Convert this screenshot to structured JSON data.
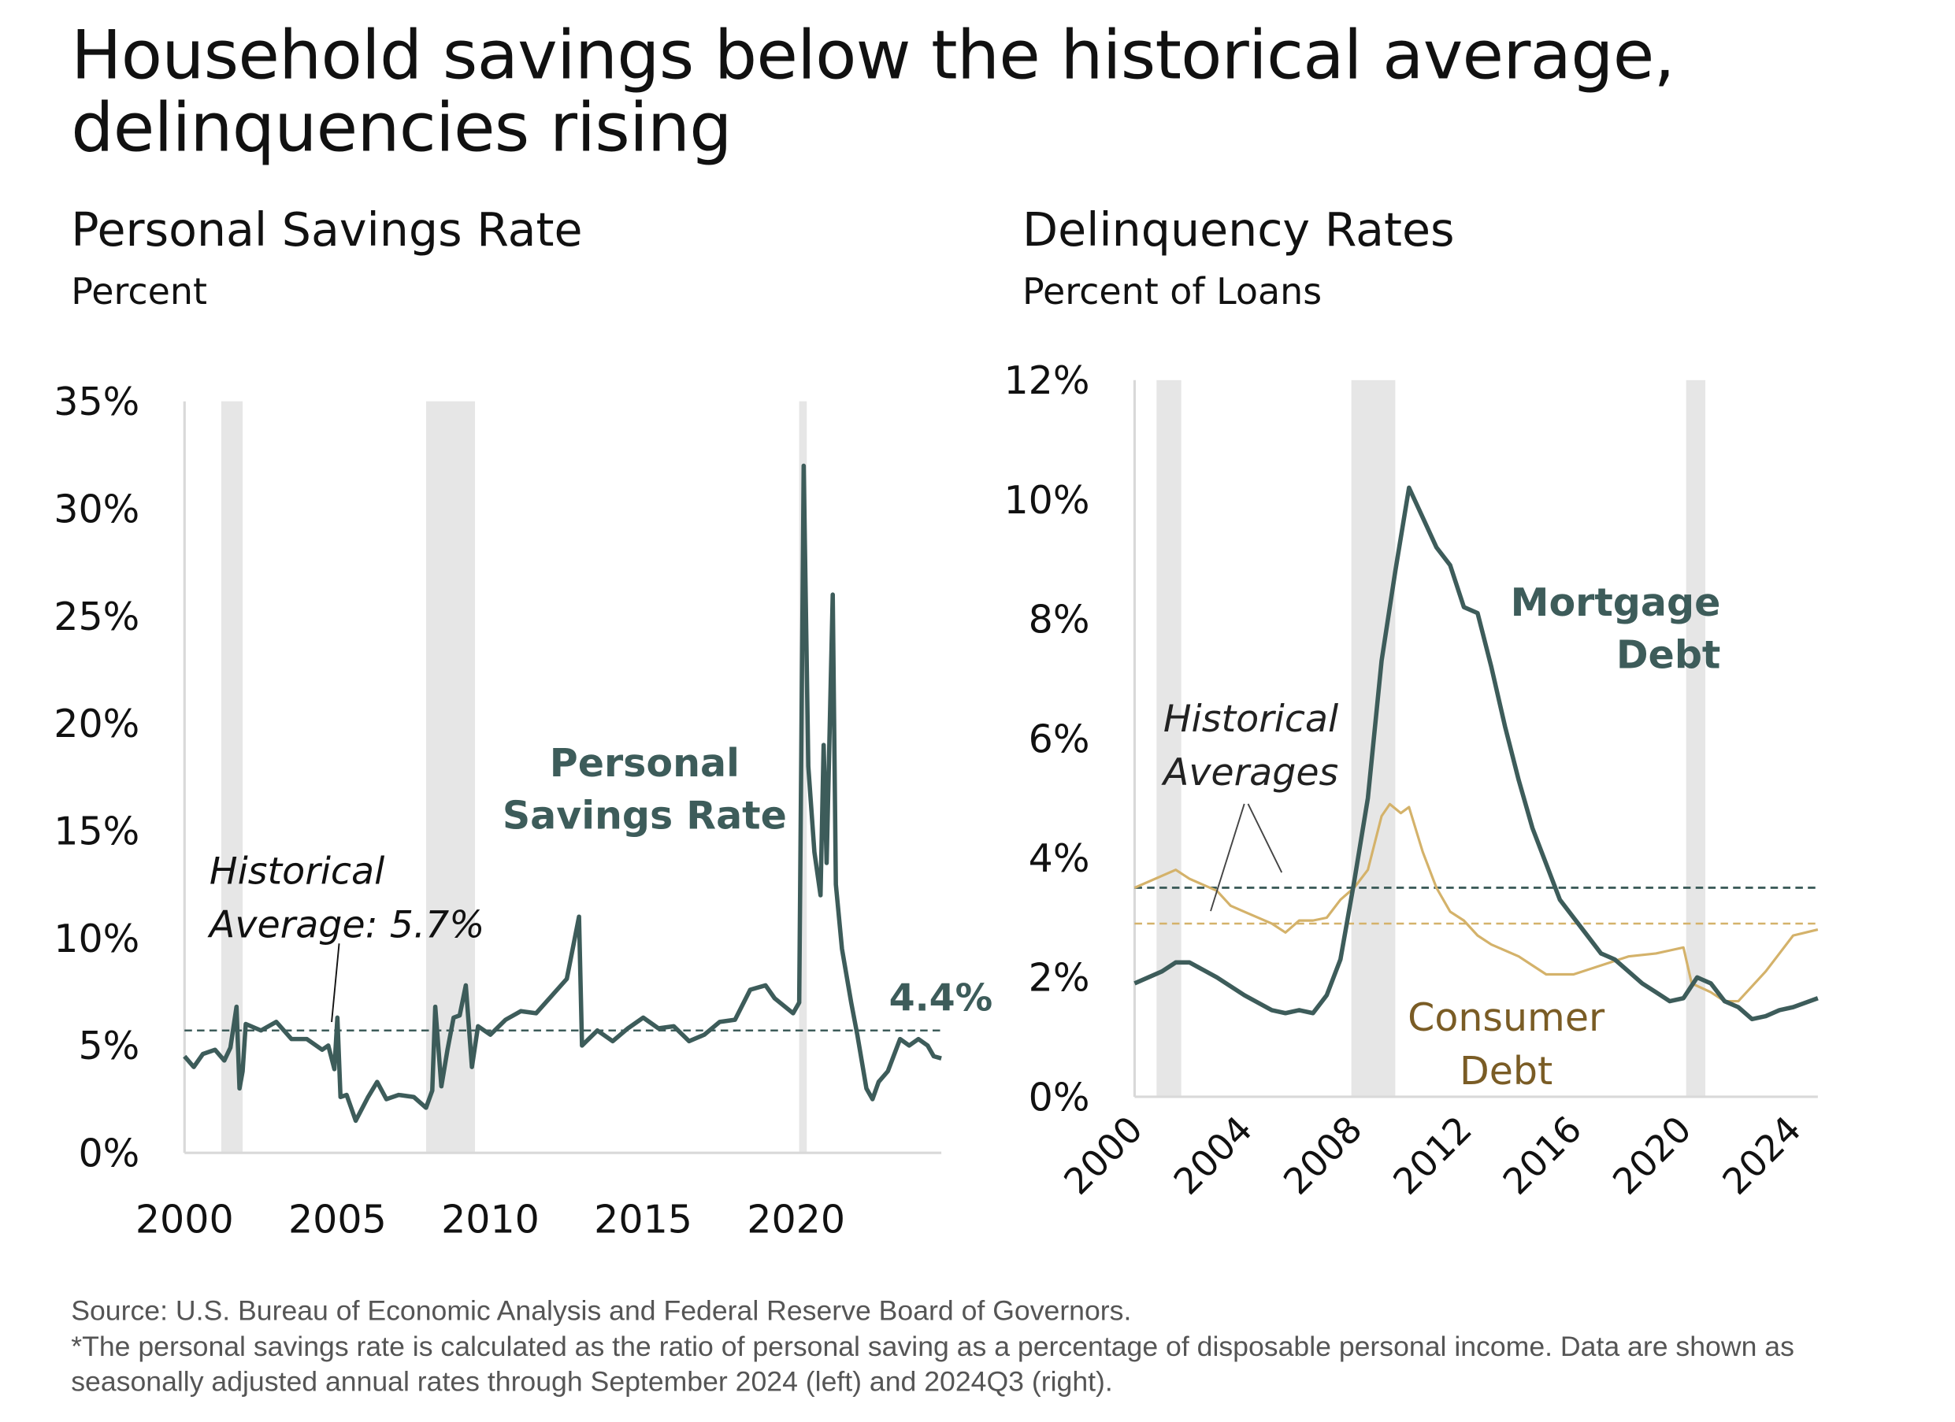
{
  "title": [
    "Household savings below the historical average,",
    "delinquencies rising"
  ],
  "colors": {
    "teal": "#3d5c5a",
    "gold": "#d4b26a",
    "consumer_label": "#7a5c25",
    "recession": "#e6e6e6"
  },
  "source": [
    "Source: U.S. Bureau of Economic Analysis and Federal Reserve Board of Governors.",
    "*The personal savings rate is calculated as the ratio of personal saving as a percentage of disposable personal income. Data are shown as seasonally adjusted annual rates through September 2024 (left) and 2024Q3 (right)."
  ],
  "chart_data": [
    {
      "type": "line",
      "title": "Personal Savings Rate",
      "ylabel": "Percent",
      "xlim": [
        2000,
        2024.75
      ],
      "ylim": [
        0,
        35
      ],
      "x_ticks": [
        2000,
        2005,
        2010,
        2015,
        2020
      ],
      "x_tick_labels": [
        "2000",
        "2005",
        "2010",
        "2015",
        "2020"
      ],
      "y_ticks": [
        0,
        5,
        10,
        15,
        20,
        25,
        30,
        35
      ],
      "y_tick_labels": [
        "0%",
        "5%",
        "10%",
        "15%",
        "20%",
        "25%",
        "30%",
        "35%"
      ],
      "recessions": [
        [
          2001.2,
          2001.9
        ],
        [
          2007.9,
          2009.5
        ],
        [
          2020.1,
          2020.35
        ]
      ],
      "historical_average": 5.7,
      "annotations": {
        "series_label": [
          "Personal",
          "Savings Rate"
        ],
        "avg_label": [
          "Historical",
          "Average: 5.7%"
        ],
        "last_value_label": "4.4%"
      },
      "series": [
        {
          "name": "Personal Savings Rate",
          "points": [
            [
              2000,
              4.5
            ],
            [
              2000.3,
              4.0
            ],
            [
              2000.6,
              4.6
            ],
            [
              2001,
              4.8
            ],
            [
              2001.3,
              4.3
            ],
            [
              2001.5,
              4.9
            ],
            [
              2001.7,
              6.8
            ],
            [
              2001.8,
              3.0
            ],
            [
              2001.9,
              3.8
            ],
            [
              2002,
              6.0
            ],
            [
              2002.5,
              5.7
            ],
            [
              2003,
              6.1
            ],
            [
              2003.5,
              5.3
            ],
            [
              2004,
              5.3
            ],
            [
              2004.5,
              4.8
            ],
            [
              2004.7,
              5.0
            ],
            [
              2004.9,
              3.9
            ],
            [
              2005.0,
              6.3
            ],
            [
              2005.1,
              2.6
            ],
            [
              2005.3,
              2.7
            ],
            [
              2005.6,
              1.5
            ],
            [
              2006,
              2.6
            ],
            [
              2006.3,
              3.3
            ],
            [
              2006.6,
              2.5
            ],
            [
              2007,
              2.7
            ],
            [
              2007.5,
              2.6
            ],
            [
              2007.9,
              2.1
            ],
            [
              2008.1,
              2.9
            ],
            [
              2008.2,
              6.8
            ],
            [
              2008.4,
              3.1
            ],
            [
              2008.6,
              4.8
            ],
            [
              2008.8,
              6.3
            ],
            [
              2009,
              6.4
            ],
            [
              2009.2,
              7.8
            ],
            [
              2009.4,
              4.0
            ],
            [
              2009.6,
              5.9
            ],
            [
              2010,
              5.5
            ],
            [
              2010.5,
              6.2
            ],
            [
              2011,
              6.6
            ],
            [
              2011.5,
              6.5
            ],
            [
              2012,
              7.3
            ],
            [
              2012.5,
              8.1
            ],
            [
              2012.9,
              11.0
            ],
            [
              2013.0,
              5.0
            ],
            [
              2013.5,
              5.7
            ],
            [
              2014,
              5.2
            ],
            [
              2014.5,
              5.8
            ],
            [
              2015,
              6.3
            ],
            [
              2015.5,
              5.8
            ],
            [
              2016,
              5.9
            ],
            [
              2016.5,
              5.2
            ],
            [
              2017,
              5.5
            ],
            [
              2017.5,
              6.1
            ],
            [
              2018,
              6.2
            ],
            [
              2018.5,
              7.6
            ],
            [
              2019,
              7.8
            ],
            [
              2019.3,
              7.2
            ],
            [
              2019.9,
              6.5
            ],
            [
              2020.1,
              7.0
            ],
            [
              2020.25,
              32.0
            ],
            [
              2020.4,
              18.0
            ],
            [
              2020.6,
              14.0
            ],
            [
              2020.8,
              12.0
            ],
            [
              2020.9,
              19.0
            ],
            [
              2021.0,
              13.5
            ],
            [
              2021.2,
              26.0
            ],
            [
              2021.3,
              12.5
            ],
            [
              2021.5,
              9.5
            ],
            [
              2021.8,
              7.0
            ],
            [
              2022.0,
              5.5
            ],
            [
              2022.3,
              3.0
            ],
            [
              2022.5,
              2.5
            ],
            [
              2022.7,
              3.3
            ],
            [
              2023,
              3.8
            ],
            [
              2023.4,
              5.3
            ],
            [
              2023.7,
              5.0
            ],
            [
              2024,
              5.3
            ],
            [
              2024.3,
              5.0
            ],
            [
              2024.5,
              4.5
            ],
            [
              2024.75,
              4.4
            ]
          ]
        }
      ]
    },
    {
      "type": "line",
      "title": "Delinquency Rates",
      "ylabel": "Percent of Loans",
      "xlim": [
        2000,
        2024.9
      ],
      "ylim": [
        0,
        12
      ],
      "x_ticks": [
        2000,
        2004,
        2008,
        2012,
        2016,
        2020,
        2024
      ],
      "x_tick_labels": [
        "2000",
        "2004",
        "2008",
        "2012",
        "2016",
        "2020",
        "2024"
      ],
      "y_ticks": [
        0,
        2,
        4,
        6,
        8,
        10,
        12
      ],
      "y_tick_labels": [
        "0%",
        "2%",
        "4%",
        "6%",
        "8%",
        "10%",
        "12%"
      ],
      "recessions": [
        [
          2000.8,
          2001.7
        ],
        [
          2007.9,
          2009.5
        ],
        [
          2020.1,
          2020.8
        ]
      ],
      "historical_averages": {
        "Mortgage Debt": 3.5,
        "Consumer Debt": 2.9
      },
      "annotations": {
        "avg_label": [
          "Historical",
          "Averages"
        ],
        "mortgage_label": [
          "Mortgage",
          "Debt"
        ],
        "consumer_label": [
          "Consumer",
          "Debt"
        ]
      },
      "series": [
        {
          "name": "Mortgage Debt",
          "points": [
            [
              2000,
              1.9
            ],
            [
              2001,
              2.1
            ],
            [
              2001.5,
              2.25
            ],
            [
              2002,
              2.25
            ],
            [
              2003,
              2.0
            ],
            [
              2004,
              1.7
            ],
            [
              2005,
              1.45
            ],
            [
              2005.5,
              1.4
            ],
            [
              2006,
              1.45
            ],
            [
              2006.5,
              1.4
            ],
            [
              2007,
              1.7
            ],
            [
              2007.5,
              2.3
            ],
            [
              2008,
              3.6
            ],
            [
              2008.5,
              5.0
            ],
            [
              2009,
              7.3
            ],
            [
              2009.5,
              8.8
            ],
            [
              2010,
              10.2
            ],
            [
              2010.5,
              9.7
            ],
            [
              2011,
              9.2
            ],
            [
              2011.5,
              8.9
            ],
            [
              2012,
              8.2
            ],
            [
              2012.5,
              8.1
            ],
            [
              2013,
              7.2
            ],
            [
              2013.5,
              6.2
            ],
            [
              2014,
              5.3
            ],
            [
              2014.5,
              4.5
            ],
            [
              2015,
              3.9
            ],
            [
              2015.5,
              3.3
            ],
            [
              2016,
              3.0
            ],
            [
              2016.5,
              2.7
            ],
            [
              2017,
              2.4
            ],
            [
              2017.5,
              2.3
            ],
            [
              2018,
              2.1
            ],
            [
              2018.5,
              1.9
            ],
            [
              2019,
              1.75
            ],
            [
              2019.5,
              1.6
            ],
            [
              2020,
              1.65
            ],
            [
              2020.5,
              2.0
            ],
            [
              2021,
              1.9
            ],
            [
              2021.5,
              1.6
            ],
            [
              2022,
              1.5
            ],
            [
              2022.5,
              1.3
            ],
            [
              2023,
              1.35
            ],
            [
              2023.5,
              1.45
            ],
            [
              2024,
              1.5
            ],
            [
              2024.9,
              1.65
            ]
          ]
        },
        {
          "name": "Consumer Debt",
          "points": [
            [
              2000,
              3.5
            ],
            [
              2001,
              3.7
            ],
            [
              2001.5,
              3.8
            ],
            [
              2002,
              3.65
            ],
            [
              2003,
              3.45
            ],
            [
              2003.5,
              3.2
            ],
            [
              2004,
              3.1
            ],
            [
              2005,
              2.9
            ],
            [
              2005.5,
              2.75
            ],
            [
              2006,
              2.95
            ],
            [
              2006.5,
              2.95
            ],
            [
              2007,
              3.0
            ],
            [
              2007.5,
              3.3
            ],
            [
              2008,
              3.5
            ],
            [
              2008.5,
              3.8
            ],
            [
              2009,
              4.7
            ],
            [
              2009.3,
              4.9
            ],
            [
              2009.7,
              4.75
            ],
            [
              2010,
              4.85
            ],
            [
              2010.5,
              4.1
            ],
            [
              2011,
              3.5
            ],
            [
              2011.5,
              3.1
            ],
            [
              2012,
              2.95
            ],
            [
              2012.5,
              2.7
            ],
            [
              2013,
              2.55
            ],
            [
              2014,
              2.35
            ],
            [
              2014.5,
              2.2
            ],
            [
              2015,
              2.05
            ],
            [
              2016,
              2.05
            ],
            [
              2017,
              2.2
            ],
            [
              2018,
              2.35
            ],
            [
              2019,
              2.4
            ],
            [
              2019.5,
              2.45
            ],
            [
              2020,
              2.5
            ],
            [
              2020.3,
              1.9
            ],
            [
              2021,
              1.75
            ],
            [
              2021.5,
              1.6
            ],
            [
              2022,
              1.6
            ],
            [
              2023,
              2.1
            ],
            [
              2023.5,
              2.4
            ],
            [
              2024,
              2.7
            ],
            [
              2024.9,
              2.8
            ]
          ]
        }
      ]
    }
  ]
}
